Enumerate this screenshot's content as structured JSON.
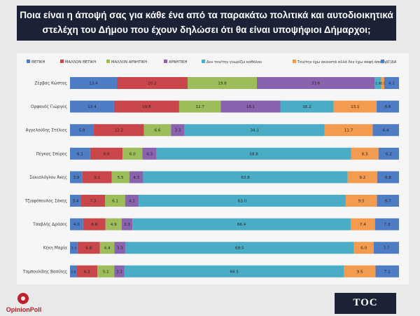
{
  "header": {
    "title_line1": "Ποια είναι η άποψή σας για κάθε ένα από τα παρακάτω πολιτικά και αυτοδιοικητικά",
    "title_line2": "στελέχη του Δήμου που έχουν δηλώσει ότι θα είναι υποψήφιοι Δήμαρχοι;"
  },
  "logos": {
    "left": "OpinionPoll",
    "right": "TOC"
  },
  "chart_data": {
    "type": "bar",
    "orientation": "horizontal",
    "stacked": true,
    "normalized_to": 100,
    "title": "Ποια είναι η άποψή σας για κάθε ένα από τα παρακάτω πολιτικά και αυτοδιοικητικά στελέχη του Δήμου που έχουν δηλώσει ότι θα είναι υποψήφιοι Δήμαρχοι;",
    "legend_position": "top",
    "categories": [
      "Ζέρβας Κώστας",
      "Ορφανός Γιώργος",
      "Αγγελούδης Στέλιος",
      "Πέγκας Σπύρος",
      "Σακισλόγλου Άκης",
      "Τζιαφόπουλος Σάκης",
      "Τσαβλής Δρόσος",
      "Κέκη Μαρία",
      "Τομπουλίδης Βασίλης"
    ],
    "series": [
      {
        "name": "ΘΕΤΙΚΗ",
        "color": "#4e7dc5",
        "values": [
          13.4,
          13.4,
          5.8,
          6.1,
          3.9,
          3.4,
          4.0,
          2.3,
          2.0
        ]
      },
      {
        "name": "ΜΑΛΛΟΝ ΘΕΤΙΚΗ",
        "color": "#c9474a",
        "values": [
          20.2,
          19.8,
          12.2,
          9.8,
          9.1,
          7.3,
          6.8,
          6.8,
          6.3
        ]
      },
      {
        "name": "ΜΑΛΛΟΝ ΑΡΝΗΤΙΚΗ",
        "color": "#9cbd5a",
        "values": [
          19.8,
          12.7,
          6.6,
          6.0,
          5.5,
          6.1,
          4.9,
          4.4,
          5.1
        ]
      },
      {
        "name": "ΑΡΝΗΤΙΚΗ",
        "color": "#8963ae",
        "values": [
          33.6,
          18.1,
          3.3,
          4.3,
          4.3,
          4.1,
          3.3,
          3.3,
          3.1
        ]
      },
      {
        "name": "Δεν τον/την γνωρίζω καθόλου",
        "color": "#4bacc6",
        "values": [
          1.9,
          16.2,
          34.1,
          58.8,
          63.8,
          63.0,
          66.4,
          69.5,
          66.5
        ]
      },
      {
        "name": "Τον/την έχω ακουστά αλλά δεν έχω σαφή άποψη",
        "color": "#f39b4f",
        "values": [
          0.9,
          13.1,
          11.7,
          8.3,
          9.2,
          9.5,
          7.4,
          6.0,
          9.5
        ]
      },
      {
        "name": "ΔΓ/ΔΑ",
        "color": "#4e7dc5",
        "values": [
          4.2,
          6.8,
          6.4,
          6.2,
          6.8,
          6.7,
          7.3,
          7.7,
          7.1
        ]
      }
    ],
    "data_labels": [
      [
        "13.4",
        "20.2",
        "19.8",
        "33.6",
        "1.9",
        "0.9",
        "4.2"
      ],
      [
        "13.4",
        "19.8",
        "12.7",
        "18.1",
        "16.2",
        "13.1",
        "6.8"
      ],
      [
        "5.8",
        "12.2",
        "6.6",
        "3.3",
        "34.1",
        "11.7",
        "6.4"
      ],
      [
        "6.1",
        "9.8",
        "6.0",
        "4.3",
        "58.8",
        "8.3",
        "6.2"
      ],
      [
        "3.9",
        "9.1",
        "5.5",
        "4.3",
        "63.8",
        "9.2",
        "6.8"
      ],
      [
        "3.4",
        "7.3",
        "6.1",
        "4.1",
        "63.0",
        "9.5",
        "6.7"
      ],
      [
        "4.0",
        "6.8",
        "4.9",
        "3.3",
        "66.4",
        "7.4",
        "7.3"
      ],
      [
        "2.3",
        "6.8",
        "4.4",
        "3.3",
        "69.5",
        "6.0",
        "7.7"
      ],
      [
        "2.0",
        "6.3",
        "5.1",
        "3.1",
        "66.5",
        "9.5",
        "7.1"
      ]
    ],
    "xlim": [
      0,
      100
    ],
    "grid": false
  }
}
